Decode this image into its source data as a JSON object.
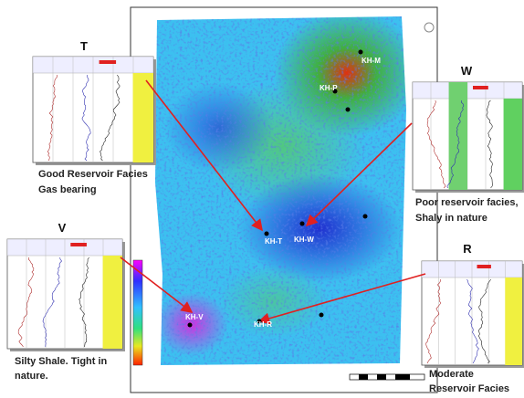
{
  "panels": [
    {
      "title": "T",
      "caption": [
        "Good Reservoir Facies",
        "Gas bearing"
      ]
    },
    {
      "title": "W",
      "caption": [
        "Poor reservoir facies,",
        "Shaly in nature"
      ]
    },
    {
      "title": "V",
      "caption": [
        "Silty Shale. Tight in",
        "nature."
      ]
    },
    {
      "title": "R",
      "caption": [
        "Moderate",
        "Reservoir Facies"
      ]
    }
  ],
  "wells": [
    {
      "label": "KH-M"
    },
    {
      "label": "KH-P"
    },
    {
      "label": "KH-T"
    },
    {
      "label": "KH-W"
    },
    {
      "label": "KH-V"
    },
    {
      "label": "KH-R"
    }
  ]
}
